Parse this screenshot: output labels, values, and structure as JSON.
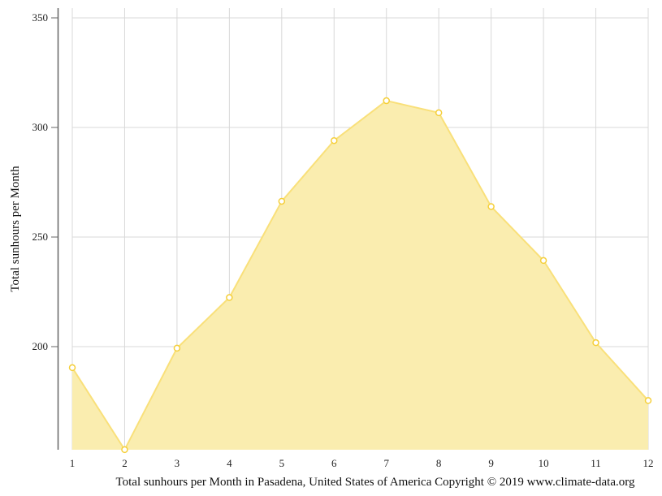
{
  "chart_data": {
    "type": "area",
    "title": "",
    "xlabel": "Total sunhours per Month in Pasadena, United States of America Copyright © 2019 www.climate-data.org",
    "ylabel": "Total sunhours per Month",
    "categories": [
      "1",
      "2",
      "3",
      "4",
      "5",
      "6",
      "7",
      "8",
      "9",
      "10",
      "11",
      "12"
    ],
    "series": [
      {
        "name": "Sunhours",
        "values": [
          190.4,
          153,
          199.3,
          222.4,
          266.3,
          294,
          312.2,
          306.7,
          263.9,
          239.3,
          201.8,
          175.4
        ]
      }
    ],
    "y_ticks": [
      200,
      250,
      300,
      350
    ],
    "ylim": [
      153,
      355
    ],
    "grid": true,
    "legend": "none",
    "colors": {
      "fill": "#faedaf",
      "line": "#f9e07a",
      "marker": "#f5cf3a",
      "grid": "#d8d8d8",
      "axis": "#666666"
    }
  }
}
